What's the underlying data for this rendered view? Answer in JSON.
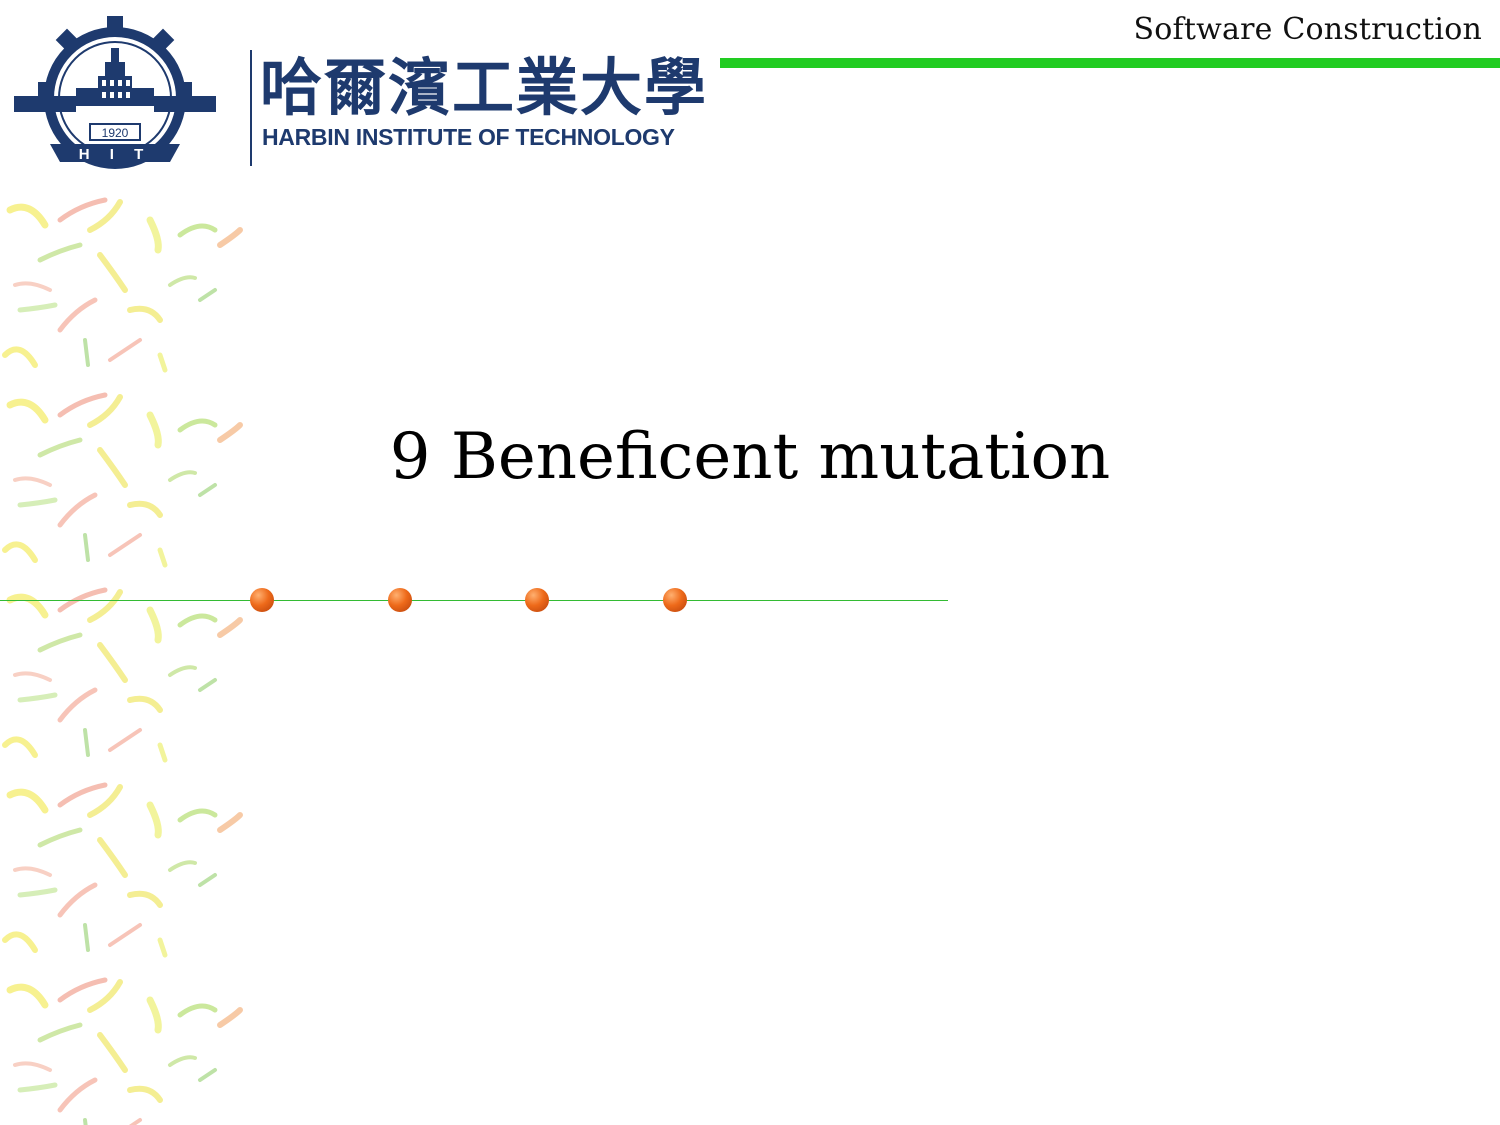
{
  "header": {
    "course_title": "Software Construction",
    "accent_color": "#22cc22"
  },
  "logo": {
    "cn_name": "哈爾濱工業大學",
    "en_name": "HARBIN INSTITUTE OF TECHNOLOGY",
    "emblem_year": "1920",
    "emblem_letters": "H I T",
    "brand_color": "#1e3a6e"
  },
  "main": {
    "title": "9 Beneficent mutation"
  },
  "decor": {
    "dot_color": "#ee6a1a",
    "line_color": "#33bb33",
    "dot_count": 4
  }
}
